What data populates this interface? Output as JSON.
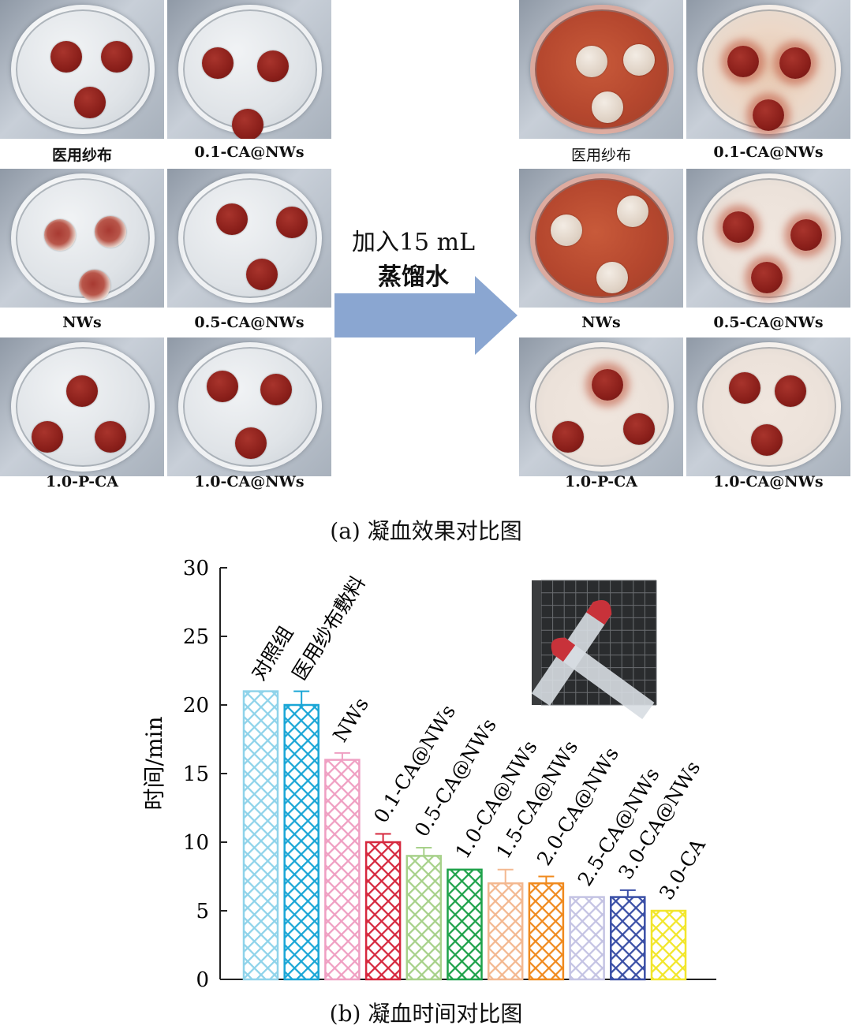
{
  "panel_a": {
    "arrow_text_line1": "加入15 mL",
    "arrow_text_line2": "蒸馏水",
    "caption": "(a) 凝血效果对比图",
    "left_labels": [
      "医用纱布",
      "0.1-CA@NWs",
      "NWs",
      "0.5-CA@NWs",
      "1.0-P-CA",
      "1.0-CA@NWs"
    ],
    "right_labels": [
      "医用纱布",
      "0.1-CA@NWs",
      "NWs",
      "0.5-CA@NWs",
      "1.0-P-CA",
      "1.0-CA@NWs"
    ]
  },
  "panel_b": {
    "caption": "(b) 凝血时间对比图"
  },
  "chart_data": {
    "type": "bar",
    "ylabel": "时间/min",
    "xlabel": "",
    "ylim": [
      0,
      30
    ],
    "yticks": [
      0,
      5,
      10,
      15,
      20,
      25,
      30
    ],
    "categories": [
      "对照组",
      "医用纱布敷料",
      "NWs",
      "0.1-CA@NWs",
      "0.5-CA@NWs",
      "1.0-CA@NWs",
      "1.5-CA@NWs",
      "2.0-CA@NWs",
      "2.5-CA@NWs",
      "3.0-CA@NWs",
      "3.0-CA"
    ],
    "values": [
      21,
      20,
      16,
      10,
      9,
      8,
      7,
      7,
      6,
      6,
      5
    ],
    "errors": [
      0,
      1.0,
      0.5,
      0.6,
      0.6,
      0,
      1.0,
      0.5,
      0,
      0.5,
      0
    ],
    "colors": [
      "#8fd3ea",
      "#1aa6d6",
      "#ef9fc2",
      "#d6283e",
      "#a7d18a",
      "#1fa24a",
      "#f3b890",
      "#f08a1e",
      "#c4c3e3",
      "#3a4fa6",
      "#f2e62a"
    ],
    "pattern": "crosshatch",
    "grid": false
  }
}
